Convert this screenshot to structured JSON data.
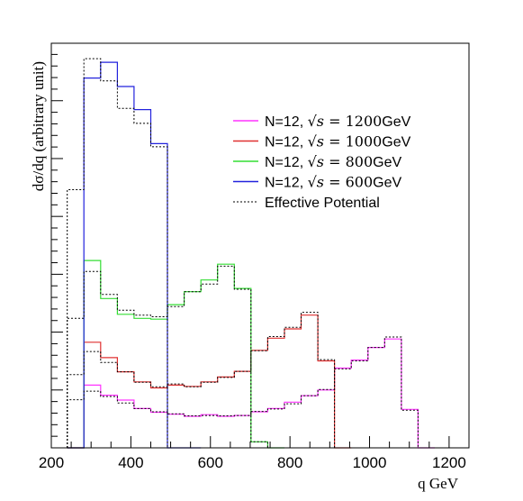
{
  "chart_data": {
    "type": "line",
    "title": "",
    "xlabel": "q GeV",
    "ylabel": "dσ/dq (arbitrary unit)",
    "xlim": [
      200,
      1250
    ],
    "ylim": [
      0,
      1
    ],
    "xticks": [
      "200",
      "400",
      "600",
      "800",
      "1000",
      "1200"
    ],
    "xtick_values": [
      200,
      400,
      600,
      800,
      1000,
      1200
    ],
    "y_tick_labels_shown": false,
    "grid": false,
    "legend_position": "top-right",
    "bin_width": 42,
    "series": [
      {
        "name": "N=12, √s = 1200GeV",
        "legend_root": "√s",
        "legend_rest": " = 1200GeV",
        "color": "#ff33ff",
        "x": [
          240,
          282,
          324,
          366,
          408,
          450,
          492,
          534,
          576,
          618,
          660,
          702,
          744,
          786,
          828,
          870,
          912,
          954,
          996,
          1038,
          1080,
          1122
        ],
        "values": [
          0.0,
          0.155,
          0.13,
          0.118,
          0.097,
          0.088,
          0.083,
          0.078,
          0.082,
          0.078,
          0.08,
          0.089,
          0.097,
          0.113,
          0.129,
          0.143,
          0.197,
          0.217,
          0.248,
          0.269,
          0.095,
          0.0
        ]
      },
      {
        "name": "N=12, √s = 1000GeV",
        "legend_root": "√s",
        "legend_rest": " = 1000GeV",
        "color": "#e03030",
        "x": [
          240,
          282,
          324,
          366,
          408,
          450,
          492,
          534,
          576,
          618,
          660,
          702,
          744,
          786,
          828,
          870,
          912
        ],
        "values": [
          0.0,
          0.261,
          0.223,
          0.188,
          0.163,
          0.148,
          0.155,
          0.152,
          0.163,
          0.175,
          0.189,
          0.241,
          0.271,
          0.294,
          0.328,
          0.215,
          0.0
        ]
      },
      {
        "name": "N=12, √s = 800GeV",
        "legend_root": "√s",
        "legend_rest": " = 800GeV",
        "color": "#33dd33",
        "x": [
          240,
          282,
          324,
          366,
          408,
          450,
          492,
          534,
          576,
          618,
          660,
          702,
          744
        ],
        "values": [
          0.0,
          0.463,
          0.369,
          0.33,
          0.32,
          0.318,
          0.354,
          0.386,
          0.415,
          0.454,
          0.394,
          0.015,
          0.0
        ]
      },
      {
        "name": "N=12, √s = 600GeV",
        "legend_root": "√s",
        "legend_rest": " = 600GeV",
        "color": "#2222dd",
        "x": [
          240,
          282,
          324,
          366,
          408,
          450,
          492,
          534
        ],
        "values": [
          0.0,
          0.914,
          0.953,
          0.893,
          0.836,
          0.752,
          0.0,
          0.0
        ]
      },
      {
        "name": "Effective Potential",
        "color": "#000000",
        "dashed": true,
        "groups": [
          {
            "values": [
              0.119,
              0.14,
              0.127,
              0.111,
              0.097,
              0.089,
              0.084,
              0.079,
              0.08,
              0.079,
              0.08,
              0.09,
              0.096,
              0.109,
              0.129,
              0.144,
              0.195,
              0.215,
              0.248,
              0.274,
              0.093,
              0.0
            ]
          },
          {
            "values": [
              0.181,
              0.238,
              0.211,
              0.188,
              0.162,
              0.151,
              0.158,
              0.151,
              0.162,
              0.174,
              0.189,
              0.24,
              0.275,
              0.298,
              0.335,
              0.218,
              0.0
            ]
          },
          {
            "values": [
              0.32,
              0.436,
              0.379,
              0.34,
              0.328,
              0.324,
              0.349,
              0.386,
              0.405,
              0.449,
              0.392,
              0.015,
              0.0
            ]
          },
          {
            "values": [
              0.638,
              0.962,
              0.907,
              0.839,
              0.802,
              0.744,
              0.0,
              0.0
            ]
          }
        ]
      }
    ]
  }
}
